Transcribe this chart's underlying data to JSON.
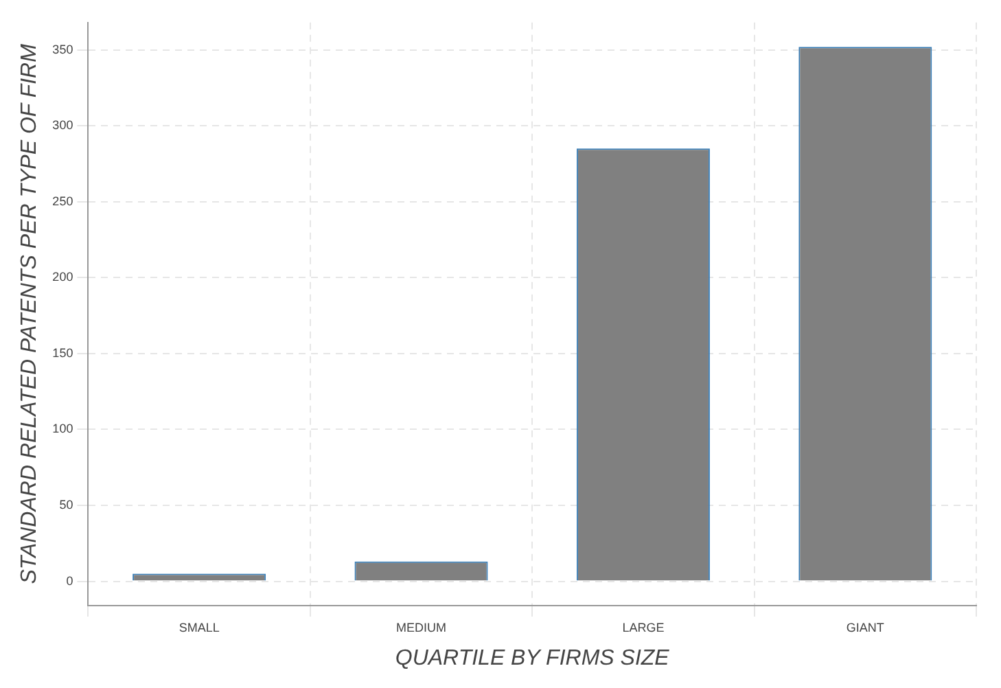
{
  "chart_data": {
    "type": "bar",
    "xlabel": "QUARTILE BY FIRMS SIZE",
    "ylabel": "STANDARD RELATED PATENTS PER TYPE OF FIRM",
    "categories": [
      "SMALL",
      "MEDIUM",
      "LARGE",
      "GIANT"
    ],
    "series": [
      {
        "color": "#808080",
        "values": [
          5,
          13,
          285,
          352
        ]
      }
    ],
    "ylim": [
      -16,
      368
    ],
    "yticks": [
      0,
      50,
      100,
      150,
      200,
      250,
      300,
      350
    ],
    "grid": true,
    "legend": false
  }
}
